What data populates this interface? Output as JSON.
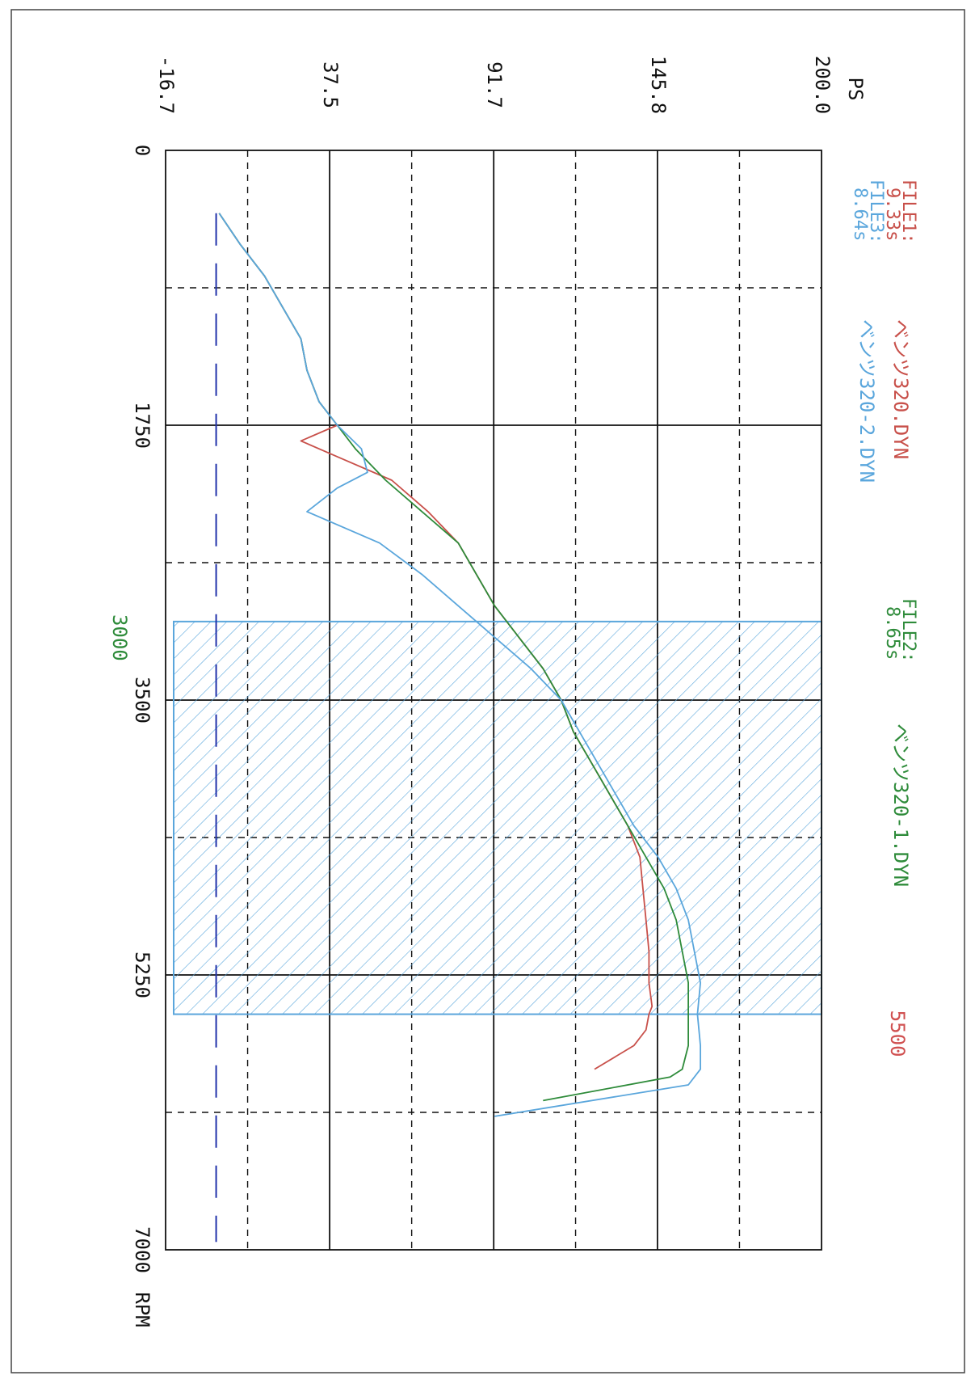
{
  "chart_data": {
    "type": "line",
    "orientation": "rotated-90-clockwise",
    "x_axis": {
      "unit": "RPM",
      "range": [
        0,
        7000
      ],
      "ticks": [
        0,
        1750,
        3500,
        5250,
        7000
      ],
      "tick_labels": [
        "0",
        "1750",
        "3500",
        "5250",
        "7000"
      ]
    },
    "y_axis": {
      "unit": "PS",
      "range": [
        -16.7,
        200.0
      ],
      "ticks": [
        -16.7,
        37.5,
        91.7,
        145.8,
        200.0
      ],
      "tick_labels": [
        "-16.7",
        "37.5",
        "91.7",
        "145.8",
        "200.0"
      ]
    },
    "grid": true,
    "highlight": {
      "from_rpm": 3000,
      "to_rpm": 5500,
      "start_label": "3000",
      "end_label": "5500",
      "start_color": "#2e8b3a",
      "end_color": "#d05050",
      "fill": "hatched",
      "color": "#5aa6dc"
    },
    "baseline": {
      "value": 0,
      "color": "#2233aa",
      "style": "dashed"
    },
    "series": [
      {
        "name": "ベンツ320.DYN",
        "file_label": "FILE1:",
        "time": "9.33s",
        "color": "#c8504a",
        "x": [
          400,
          600,
          800,
          1000,
          1200,
          1400,
          1600,
          1750,
          1850,
          1950,
          2100,
          2300,
          2500,
          2700,
          2900,
          3100,
          3300,
          3500,
          3700,
          3900,
          4100,
          4300,
          4500,
          4700,
          4900,
          5100,
          5300,
          5450,
          5500,
          5600,
          5700,
          5850
        ],
        "y": [
          1,
          8,
          16,
          22,
          28,
          30,
          34,
          40,
          28,
          40,
          58,
          70,
          80,
          86,
          92,
          100,
          108,
          114,
          118,
          124,
          130,
          136,
          140,
          141,
          142,
          143,
          143,
          144,
          143,
          142,
          138,
          125
        ]
      },
      {
        "name": "ベンツ320-1.DYN",
        "file_label": "FILE2:",
        "time": "8.65s",
        "color": "#2e8b3a",
        "x": [
          400,
          600,
          800,
          1000,
          1200,
          1400,
          1600,
          1750,
          1900,
          2100,
          2300,
          2500,
          2700,
          2900,
          3100,
          3300,
          3500,
          3700,
          3900,
          4100,
          4300,
          4500,
          4700,
          4900,
          5100,
          5300,
          5500,
          5700,
          5850,
          5900,
          6050
        ],
        "y": [
          1,
          8,
          16,
          22,
          28,
          30,
          34,
          40,
          46,
          56,
          68,
          80,
          86,
          92,
          100,
          108,
          114,
          118,
          124,
          130,
          136,
          142,
          148,
          152,
          154,
          156,
          156,
          156,
          154,
          150,
          108
        ]
      },
      {
        "name": "ベンツ320-2.DYN",
        "file_label": "FILE3:",
        "time": "8.64s",
        "color": "#5aa6dc",
        "x": [
          400,
          600,
          800,
          1000,
          1200,
          1400,
          1600,
          1750,
          1900,
          2050,
          2150,
          2300,
          2500,
          2700,
          2900,
          3100,
          3300,
          3500,
          3700,
          3900,
          4100,
          4300,
          4500,
          4700,
          4900,
          5100,
          5300,
          5500,
          5700,
          5850,
          5950,
          6150
        ],
        "y": [
          1,
          8,
          16,
          22,
          28,
          30,
          34,
          40,
          48,
          50,
          40,
          30,
          54,
          68,
          80,
          92,
          104,
          114,
          120,
          126,
          132,
          138,
          146,
          152,
          156,
          158,
          160,
          159,
          160,
          160,
          156,
          92
        ]
      }
    ]
  }
}
